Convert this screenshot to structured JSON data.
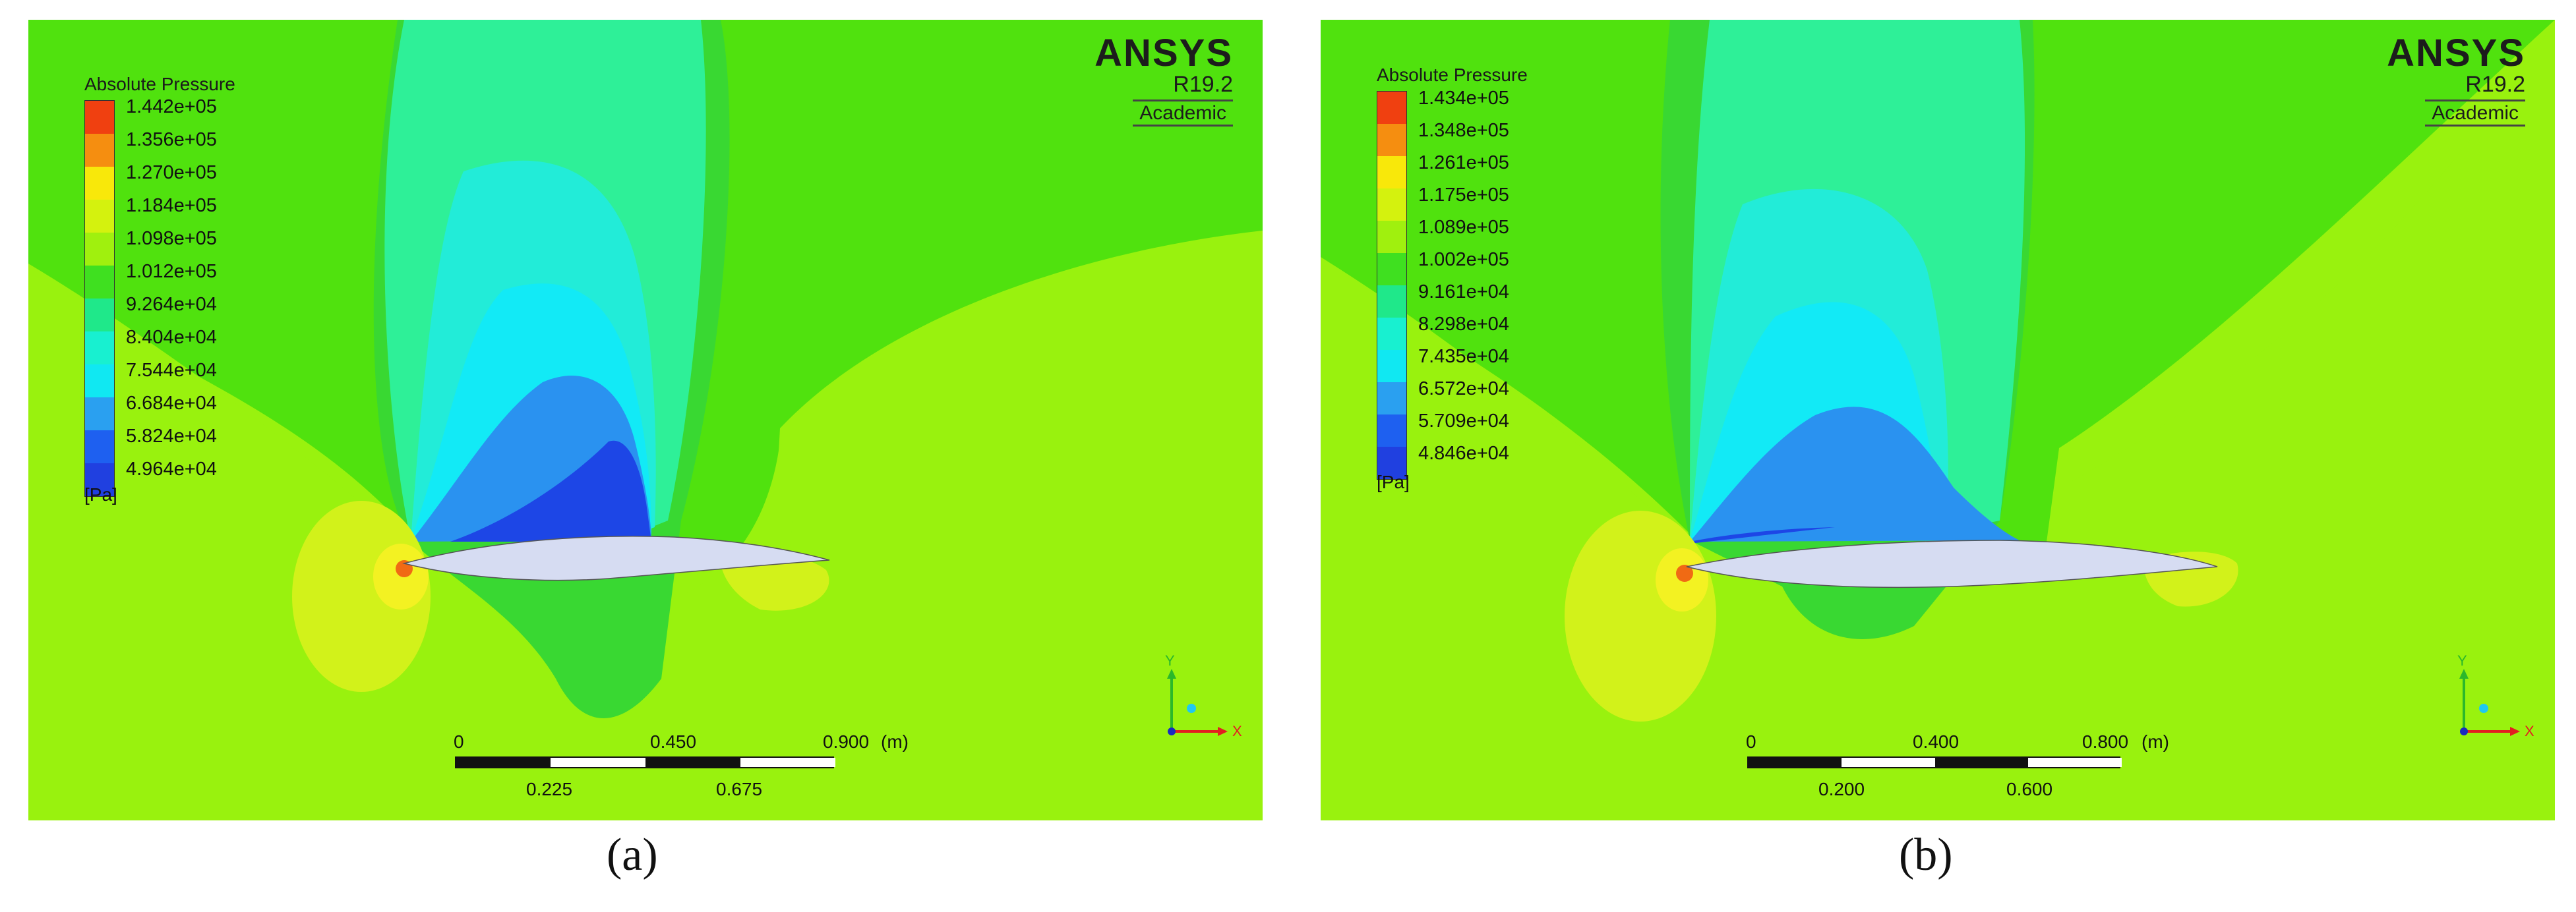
{
  "panels": [
    {
      "legend": {
        "title": "Absolute Pressure",
        "unit": "[Pa]",
        "values": [
          "1.442e+05",
          "1.356e+05",
          "1.270e+05",
          "1.184e+05",
          "1.098e+05",
          "1.012e+05",
          "9.264e+04",
          "8.404e+04",
          "7.544e+04",
          "6.684e+04",
          "5.824e+04",
          "4.964e+04"
        ]
      },
      "brand": {
        "name": "ANSYS",
        "version": "R19.2",
        "edition": "Academic"
      },
      "scale": {
        "top": [
          "0",
          "0.450",
          "0.900"
        ],
        "unit": "(m)",
        "bottom": [
          "0.225",
          "0.675"
        ]
      },
      "axes": {
        "y": "Y",
        "x": "X"
      },
      "caption": "(a)"
    },
    {
      "legend": {
        "title": "Absolute Pressure",
        "unit": "[Pa]",
        "values": [
          "1.434e+05",
          "1.348e+05",
          "1.261e+05",
          "1.175e+05",
          "1.089e+05",
          "1.002e+05",
          "9.161e+04",
          "8.298e+04",
          "7.435e+04",
          "6.572e+04",
          "5.709e+04",
          "4.846e+04"
        ]
      },
      "brand": {
        "name": "ANSYS",
        "version": "R19.2",
        "edition": "Academic"
      },
      "scale": {
        "top": [
          "0",
          "0.400",
          "0.800"
        ],
        "unit": "(m)",
        "bottom": [
          "0.200",
          "0.600"
        ]
      },
      "axes": {
        "y": "Y",
        "x": "X"
      },
      "caption": "(b)"
    }
  ],
  "colors": {
    "legend_bands": [
      "#f04010",
      "#f58e10",
      "#f8e80a",
      "#d4f20e",
      "#a0f00e",
      "#3fe020",
      "#1fe88a",
      "#18f0d0",
      "#10e8f2",
      "#2aa0f0",
      "#1e60f0",
      "#2040e0"
    ],
    "background_far": "#99f20e",
    "background_top": "#50e20e",
    "band_green": "#39d832",
    "band_teal": "#2ef098",
    "band_cyan": "#22ecd8",
    "band_lightblue": "#12eaf6",
    "band_blue": "#2a92f0",
    "band_darkblue": "#1d46e6",
    "yellow_zone": "#d2f21a",
    "yellow_core": "#f3f222",
    "stagnation": "#f06a14",
    "airfoil": "#d6dcf2"
  }
}
